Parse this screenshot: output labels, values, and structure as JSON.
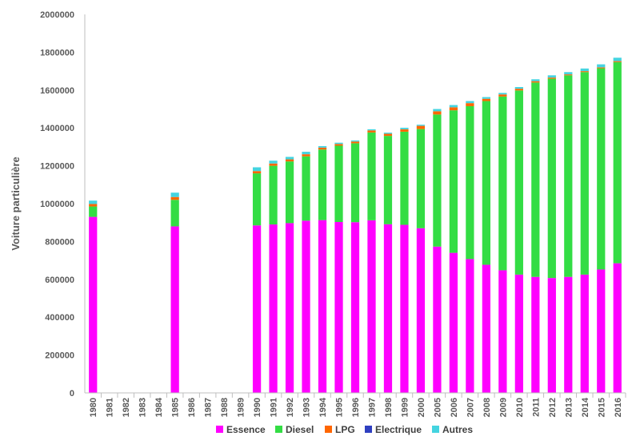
{
  "chart_data": {
    "type": "bar",
    "stacked": true,
    "title": "",
    "xlabel": "",
    "ylabel": "Voiture particulière",
    "ylim": [
      0,
      2000000
    ],
    "yticks": [
      0,
      200000,
      400000,
      600000,
      800000,
      1000000,
      1200000,
      1400000,
      1600000,
      1800000,
      2000000
    ],
    "grid": false,
    "legend_position": "bottom",
    "categories": [
      "1980",
      "1981",
      "1982",
      "1983",
      "1984",
      "1985",
      "1986",
      "1987",
      "1988",
      "1989",
      "1990",
      "1991",
      "1992",
      "1993",
      "1994",
      "1995",
      "1996",
      "1997",
      "1998",
      "1999",
      "2000",
      "2005",
      "2006",
      "2007",
      "2008",
      "2009",
      "2010",
      "2011",
      "2012",
      "2013",
      "2014",
      "2015",
      "2016"
    ],
    "series": [
      {
        "name": "Essence",
        "color": "#ff00ff",
        "values": [
          930000,
          0,
          0,
          0,
          0,
          880000,
          0,
          0,
          0,
          0,
          885000,
          890000,
          897000,
          910000,
          913000,
          903000,
          902000,
          912000,
          891000,
          888000,
          870000,
          773000,
          740000,
          707000,
          677000,
          648000,
          625000,
          613000,
          607000,
          613000,
          625000,
          652000,
          685000
        ]
      },
      {
        "name": "Diesel",
        "color": "#33dd44",
        "values": [
          55000,
          0,
          0,
          0,
          0,
          140000,
          0,
          0,
          0,
          0,
          275000,
          310000,
          326000,
          340000,
          373000,
          403000,
          417000,
          464000,
          467000,
          492000,
          524000,
          698000,
          753000,
          808000,
          865000,
          918000,
          973000,
          1027000,
          1053000,
          1065000,
          1070000,
          1063000,
          1063000
        ]
      },
      {
        "name": "LPG",
        "color": "#ff6600",
        "values": [
          13000,
          0,
          0,
          0,
          0,
          15000,
          0,
          0,
          0,
          0,
          12000,
          12000,
          11000,
          11000,
          10000,
          9000,
          9000,
          11000,
          11000,
          13000,
          17000,
          17000,
          16000,
          16000,
          12000,
          11000,
          9000,
          7000,
          6000,
          5000,
          5000,
          5000,
          5000
        ]
      },
      {
        "name": "Electrique",
        "color": "#2f3fc0",
        "values": [
          0,
          0,
          0,
          0,
          0,
          0,
          0,
          0,
          0,
          0,
          0,
          0,
          0,
          0,
          0,
          0,
          0,
          0,
          0,
          0,
          0,
          0,
          0,
          0,
          0,
          0,
          0,
          0,
          0,
          0,
          0,
          0,
          0
        ]
      },
      {
        "name": "Autres",
        "color": "#44d4e0",
        "values": [
          18000,
          0,
          0,
          0,
          0,
          23000,
          0,
          0,
          0,
          0,
          20000,
          15000,
          13000,
          13000,
          8000,
          7000,
          6000,
          6000,
          6000,
          8000,
          6000,
          12000,
          12000,
          11000,
          9000,
          8000,
          9000,
          10000,
          12000,
          12000,
          14000,
          16000,
          18000
        ]
      }
    ]
  }
}
